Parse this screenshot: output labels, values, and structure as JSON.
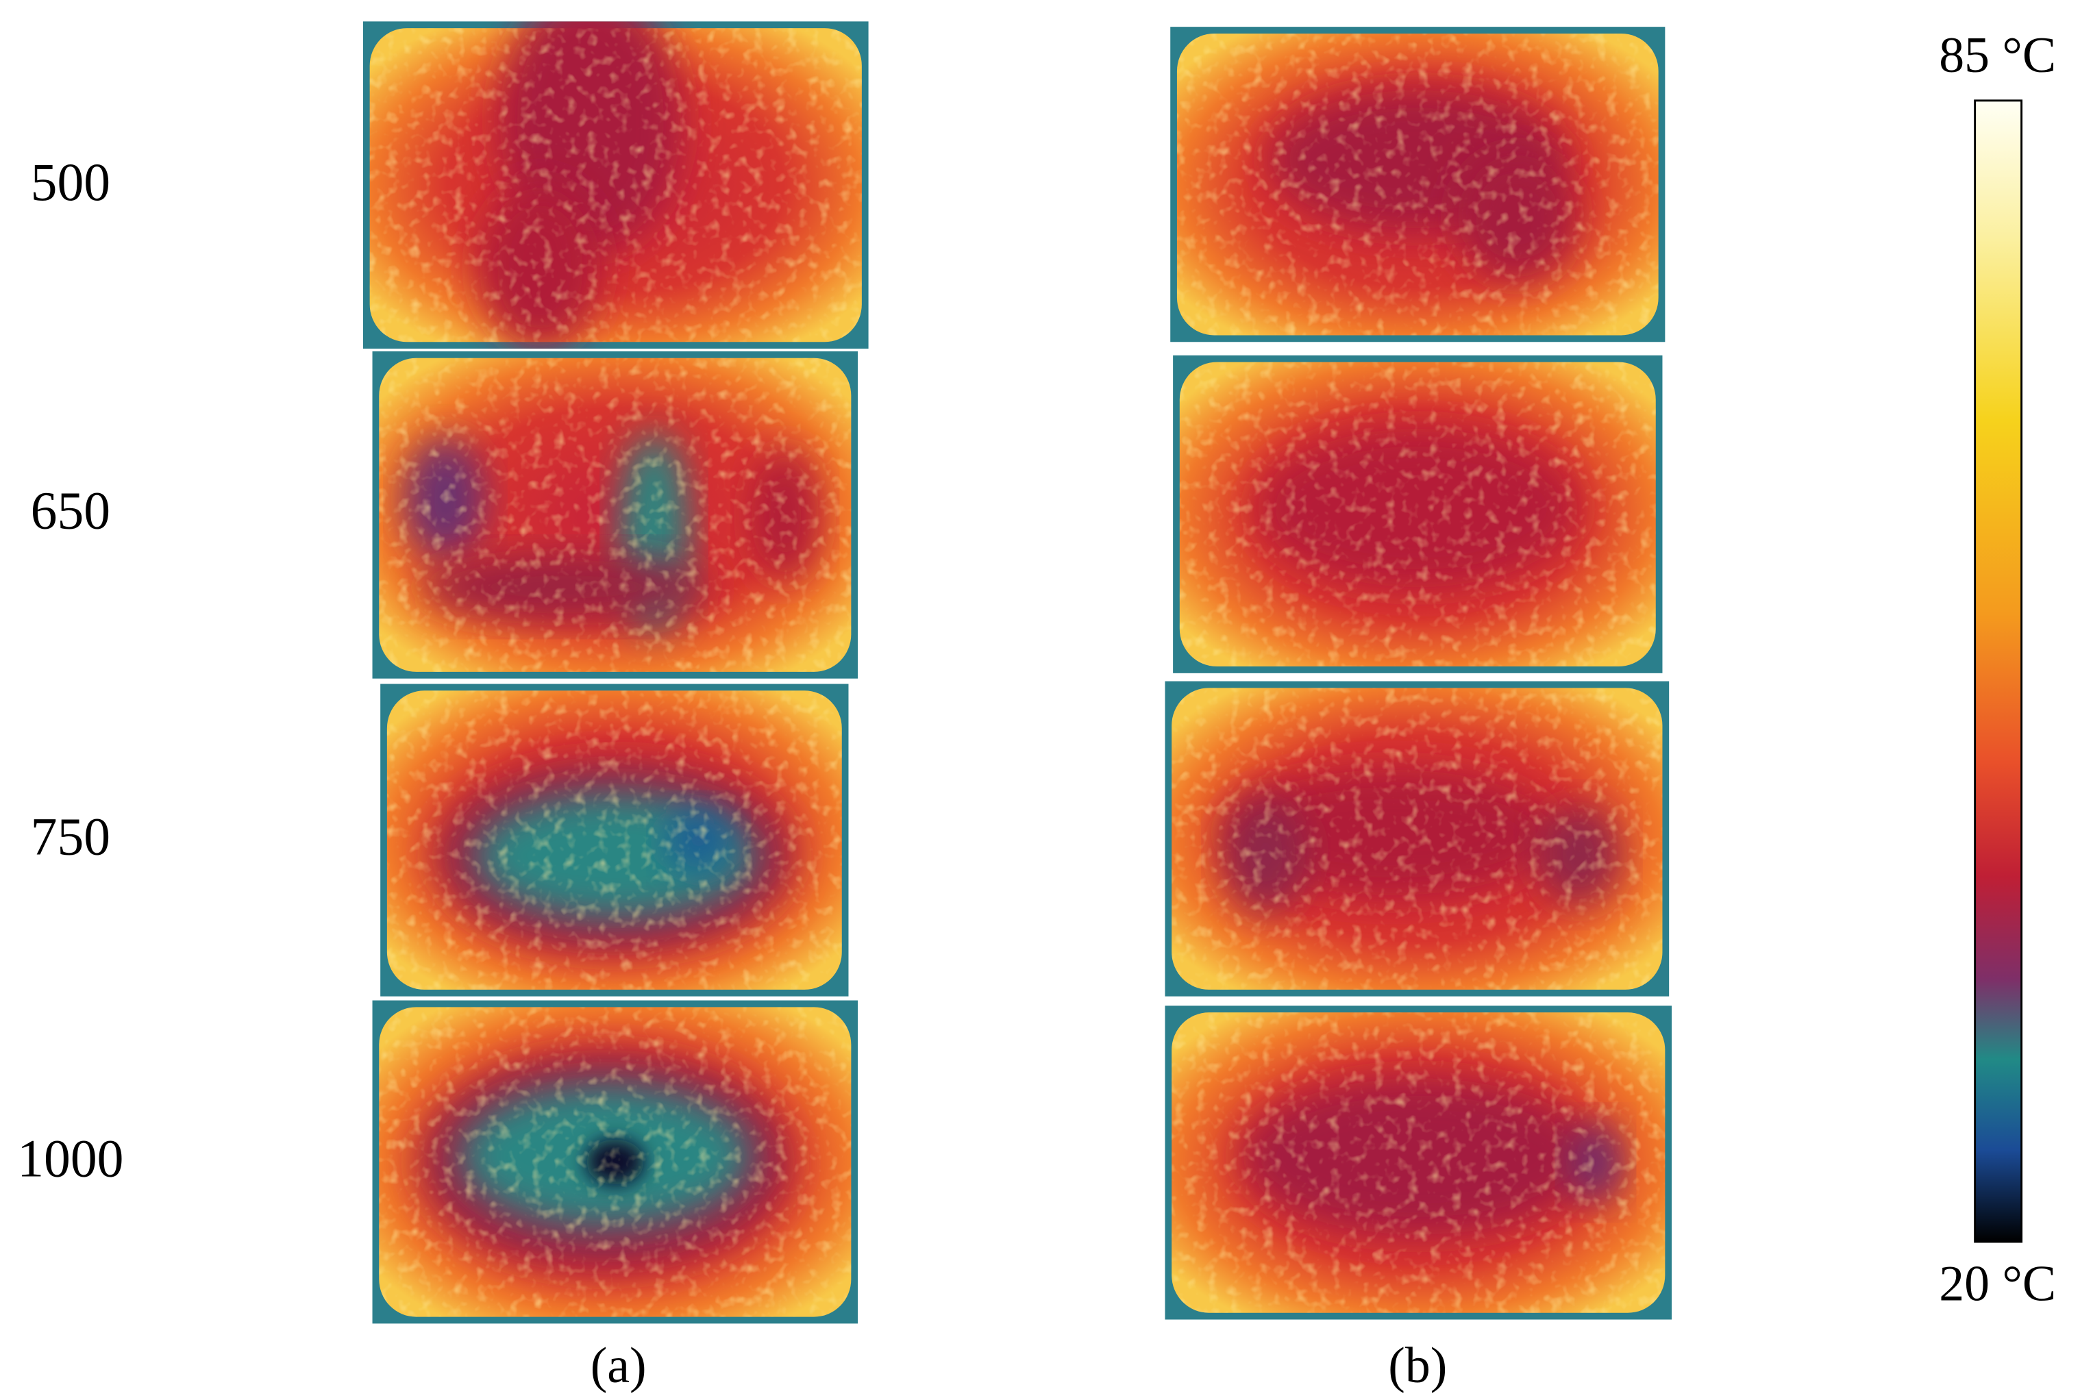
{
  "rows": [
    "500",
    "650",
    "750",
    "1000"
  ],
  "columns": [
    "(a)",
    "(b)"
  ],
  "colorbar": {
    "max_label": "85 °C",
    "min_label": "20 °C"
  }
}
